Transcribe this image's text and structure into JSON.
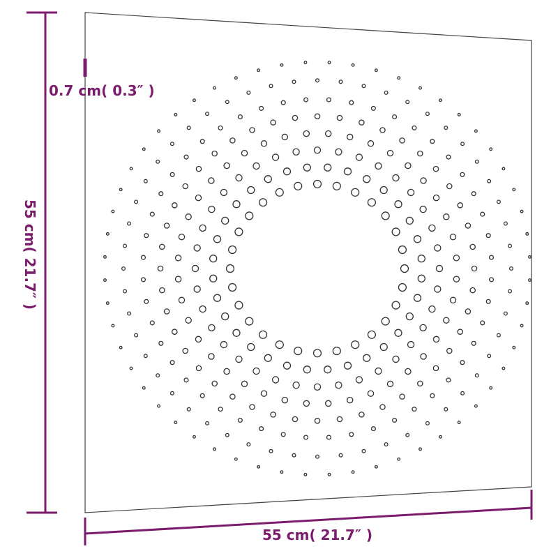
{
  "dimensions": {
    "thickness": {
      "label": "0.7 cm( 0.3″ )"
    },
    "height": {
      "label": "55 cm( 21.7″ )"
    },
    "width": {
      "label": "55 cm( 21.7″ )"
    }
  }
}
